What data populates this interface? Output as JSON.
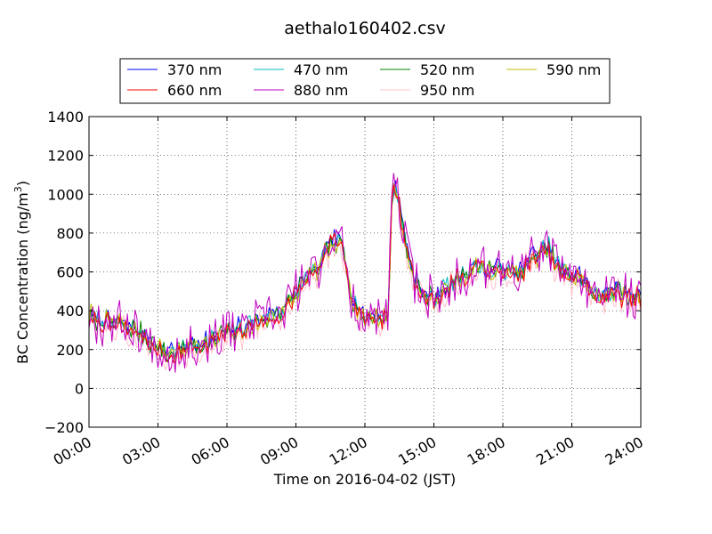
{
  "chart_data": {
    "type": "line",
    "title": "aethalo160402.csv",
    "xlabel": "Time on 2016-04-02 (JST)",
    "ylabel_main": "BC Concentration (ng/m",
    "ylabel_sup": "3",
    "ylabel_close": ")",
    "x_unit": "hours",
    "xlim": [
      0,
      24
    ],
    "ylim": [
      -200,
      1400
    ],
    "grid": true,
    "legend_position": "upper center",
    "legend_columns": 4,
    "xticks": [
      {
        "value": 0,
        "label": "00:00"
      },
      {
        "value": 3,
        "label": "03:00"
      },
      {
        "value": 6,
        "label": "06:00"
      },
      {
        "value": 9,
        "label": "09:00"
      },
      {
        "value": 12,
        "label": "12:00"
      },
      {
        "value": 15,
        "label": "15:00"
      },
      {
        "value": 18,
        "label": "18:00"
      },
      {
        "value": 21,
        "label": "21:00"
      },
      {
        "value": 24,
        "label": "24:00"
      }
    ],
    "yticks": [
      {
        "value": -200,
        "label": "−200"
      },
      {
        "value": 0,
        "label": "0"
      },
      {
        "value": 200,
        "label": "200"
      },
      {
        "value": 400,
        "label": "400"
      },
      {
        "value": 600,
        "label": "600"
      },
      {
        "value": 800,
        "label": "800"
      },
      {
        "value": 1000,
        "label": "1000"
      },
      {
        "value": 1200,
        "label": "1200"
      },
      {
        "value": 1400,
        "label": "1400"
      }
    ],
    "profile": {
      "x": [
        0,
        0.5,
        1,
        1.5,
        2,
        2.5,
        3,
        3.5,
        4,
        4.5,
        5,
        5.5,
        6,
        6.5,
        7,
        7.5,
        8,
        8.5,
        9,
        9.5,
        10,
        10.5,
        11,
        11.5,
        12,
        12.5,
        13,
        13.2,
        13.4,
        13.6,
        14,
        14.5,
        15,
        15.5,
        16,
        16.5,
        17,
        17.5,
        18,
        18.5,
        19,
        19.5,
        20,
        20.5,
        21,
        21.5,
        22,
        22.5,
        23,
        23.5,
        24
      ],
      "y": [
        380,
        350,
        340,
        330,
        300,
        260,
        210,
        180,
        200,
        230,
        230,
        260,
        280,
        300,
        320,
        360,
        370,
        400,
        500,
        560,
        620,
        760,
        730,
        450,
        360,
        370,
        360,
        1050,
        1020,
        850,
        620,
        480,
        460,
        510,
        560,
        600,
        640,
        600,
        620,
        580,
        630,
        690,
        720,
        600,
        580,
        560,
        470,
        490,
        500,
        470,
        480
      ]
    },
    "series": [
      {
        "name": "370 nm",
        "color": "#0000ff",
        "noise": 35,
        "offset": 10,
        "seed": 11
      },
      {
        "name": "470 nm",
        "color": "#00bfbf",
        "noise": 35,
        "offset": 5,
        "seed": 23
      },
      {
        "name": "520 nm",
        "color": "#008000",
        "noise": 38,
        "offset": 0,
        "seed": 37
      },
      {
        "name": "590 nm",
        "color": "#bfbf00",
        "noise": 40,
        "offset": -5,
        "seed": 41
      },
      {
        "name": "660 nm",
        "color": "#ff0000",
        "noise": 40,
        "offset": -8,
        "seed": 53
      },
      {
        "name": "880 nm",
        "color": "#bf00bf",
        "noise": 110,
        "offset": 0,
        "seed": 67
      },
      {
        "name": "950 nm",
        "color": "#ffc0cb",
        "noise": 75,
        "offset": -25,
        "seed": 79
      }
    ]
  }
}
